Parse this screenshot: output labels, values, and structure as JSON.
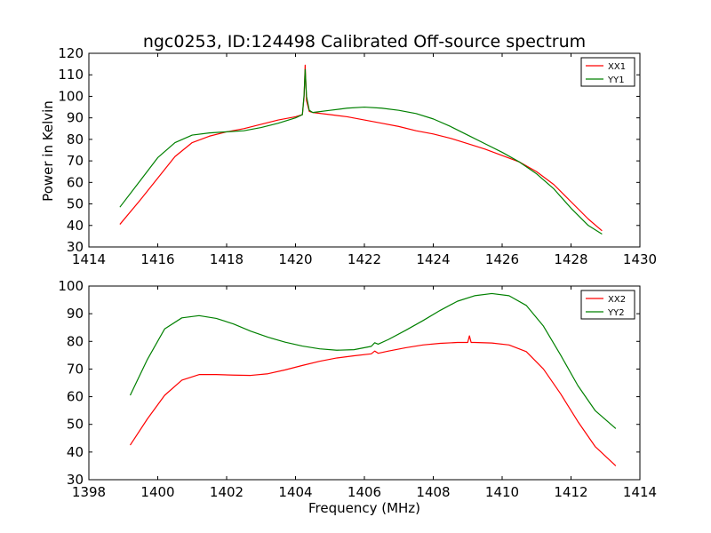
{
  "chart_data": [
    {
      "type": "line",
      "title": "ngc0253, ID:124498 Calibrated Off-source spectrum",
      "xlabel": "",
      "ylabel": "Power in Kelvin",
      "xlim": [
        1414,
        1430
      ],
      "ylim": [
        30,
        120
      ],
      "xticks": [
        1414,
        1416,
        1418,
        1420,
        1422,
        1424,
        1426,
        1428,
        1430
      ],
      "yticks": [
        30,
        40,
        50,
        60,
        70,
        80,
        90,
        100,
        110,
        120
      ],
      "legend_position": "top-right",
      "grid": false,
      "series": [
        {
          "name": "XX1",
          "color": "#ff0000",
          "x": [
            1414.9,
            1415.5,
            1416.0,
            1416.5,
            1417.0,
            1417.5,
            1418.0,
            1418.5,
            1419.0,
            1419.5,
            1420.0,
            1420.2,
            1420.25,
            1420.28,
            1420.32,
            1420.4,
            1420.5,
            1421.0,
            1421.5,
            1422.0,
            1422.5,
            1423.0,
            1423.5,
            1424.0,
            1424.5,
            1425.0,
            1425.5,
            1426.0,
            1426.5,
            1427.0,
            1427.5,
            1428.0,
            1428.5,
            1428.9
          ],
          "values": [
            40.5,
            52,
            62,
            72,
            78.5,
            81.5,
            83.5,
            85,
            87,
            89,
            90.5,
            91.5,
            100,
            114.5,
            98,
            93,
            92.5,
            91.5,
            90.5,
            89,
            87.5,
            86,
            84,
            82.5,
            80.5,
            78,
            75.5,
            72.5,
            69.5,
            65,
            59,
            51,
            43,
            37.5
          ]
        },
        {
          "name": "YY1",
          "color": "#008000",
          "x": [
            1414.9,
            1415.5,
            1416.0,
            1416.5,
            1417.0,
            1417.5,
            1418.0,
            1418.5,
            1419.0,
            1419.5,
            1420.0,
            1420.2,
            1420.25,
            1420.28,
            1420.32,
            1420.4,
            1420.5,
            1421.0,
            1421.5,
            1422.0,
            1422.5,
            1423.0,
            1423.5,
            1424.0,
            1424.5,
            1425.0,
            1425.5,
            1426.0,
            1426.5,
            1427.0,
            1427.5,
            1428.0,
            1428.5,
            1428.9
          ],
          "values": [
            48.5,
            61,
            71.5,
            78.5,
            82,
            83,
            83.5,
            84,
            85.5,
            87.5,
            90,
            91.5,
            101,
            112.5,
            100,
            93.5,
            92.5,
            93.5,
            94.5,
            95,
            94.5,
            93.5,
            92,
            89.5,
            86,
            82,
            78,
            74,
            69.5,
            64,
            57,
            48,
            40,
            36
          ]
        }
      ]
    },
    {
      "type": "line",
      "title": "",
      "xlabel": "Frequency (MHz)",
      "ylabel": "",
      "xlim": [
        1398,
        1414
      ],
      "ylim": [
        30,
        100
      ],
      "xticks": [
        1398,
        1400,
        1402,
        1404,
        1406,
        1408,
        1410,
        1412,
        1414
      ],
      "yticks": [
        30,
        40,
        50,
        60,
        70,
        80,
        90,
        100
      ],
      "legend_position": "top-right",
      "grid": false,
      "series": [
        {
          "name": "XX2",
          "color": "#ff0000",
          "x": [
            1399.2,
            1399.7,
            1400.2,
            1400.7,
            1401.2,
            1401.7,
            1402.2,
            1402.7,
            1403.2,
            1403.7,
            1404.2,
            1404.7,
            1405.2,
            1405.7,
            1406.2,
            1406.3,
            1406.4,
            1406.7,
            1407.2,
            1407.7,
            1408.2,
            1408.7,
            1409.0,
            1409.05,
            1409.1,
            1409.2,
            1409.7,
            1410.2,
            1410.7,
            1411.2,
            1411.7,
            1412.2,
            1412.7,
            1413.3
          ],
          "values": [
            42.5,
            52,
            60.5,
            66,
            68,
            68,
            67.8,
            67.7,
            68.3,
            69.7,
            71.3,
            72.8,
            74,
            74.8,
            75.5,
            76.5,
            75.7,
            76.5,
            77.7,
            78.7,
            79.3,
            79.6,
            79.6,
            82,
            79.6,
            79.6,
            79.4,
            78.7,
            76.3,
            70,
            61,
            51,
            42,
            35
          ]
        },
        {
          "name": "YY2",
          "color": "#008000",
          "x": [
            1399.2,
            1399.7,
            1400.2,
            1400.7,
            1401.2,
            1401.7,
            1402.2,
            1402.7,
            1403.2,
            1403.7,
            1404.2,
            1404.7,
            1405.2,
            1405.7,
            1406.2,
            1406.3,
            1406.4,
            1406.7,
            1407.2,
            1407.7,
            1408.2,
            1408.7,
            1409.2,
            1409.7,
            1410.2,
            1410.7,
            1411.2,
            1411.7,
            1412.2,
            1412.7,
            1413.3
          ],
          "values": [
            60.5,
            73.5,
            84.5,
            88.5,
            89.3,
            88.3,
            86.3,
            83.7,
            81.5,
            79.7,
            78.3,
            77.3,
            76.8,
            77,
            78.2,
            79.5,
            79,
            80.7,
            84,
            87.5,
            91.2,
            94.5,
            96.5,
            97.3,
            96.5,
            93,
            85.5,
            75,
            64,
            55,
            48.5
          ]
        }
      ]
    }
  ]
}
